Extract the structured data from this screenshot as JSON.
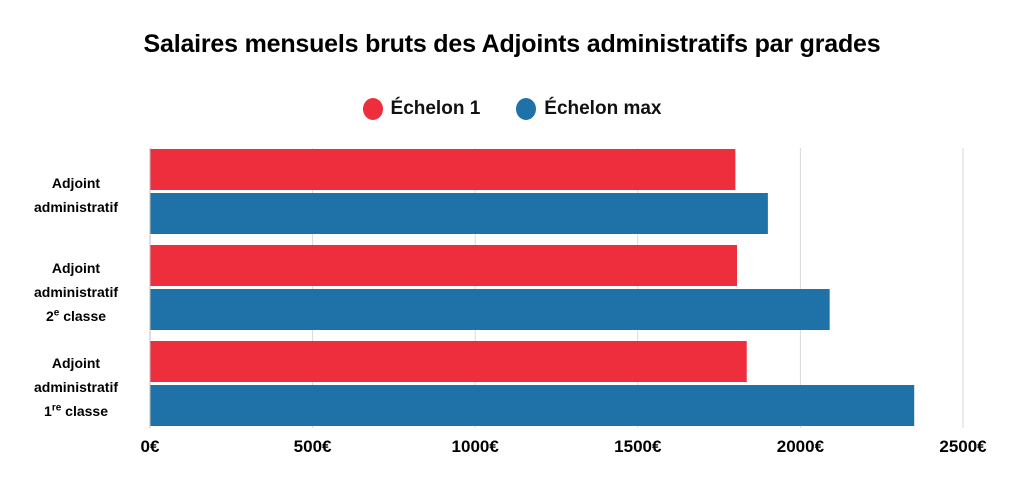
{
  "chart_data": {
    "type": "bar",
    "orientation": "horizontal",
    "title": "Salaires mensuels bruts des Adjoints administratifs par grades",
    "categories": [
      {
        "lines": [
          "Adjoint",
          "administratif"
        ],
        "sup_base": "",
        "sup": "",
        "sup_rest": ""
      },
      {
        "lines": [
          "Adjoint",
          "administratif"
        ],
        "sup_base": "2",
        "sup": "e",
        "sup_rest": " classe"
      },
      {
        "lines": [
          "Adjoint",
          "administratif"
        ],
        "sup_base": "1",
        "sup": "re",
        "sup_rest": " classe"
      }
    ],
    "series": [
      {
        "name": "Échelon 1",
        "color": "#ee2e3c",
        "values": [
          1800,
          1805,
          1835
        ]
      },
      {
        "name": "Échelon max",
        "color": "#1f72a8",
        "values": [
          1900,
          2090,
          2350
        ]
      }
    ],
    "xlim": [
      0,
      2500
    ],
    "x_ticks": [
      0,
      500,
      1000,
      1500,
      2000,
      2500
    ],
    "x_tick_labels": [
      "0€",
      "500€",
      "1000€",
      "1500€",
      "2000€",
      "2500€"
    ],
    "grid": true,
    "legend_position": "top-center"
  }
}
